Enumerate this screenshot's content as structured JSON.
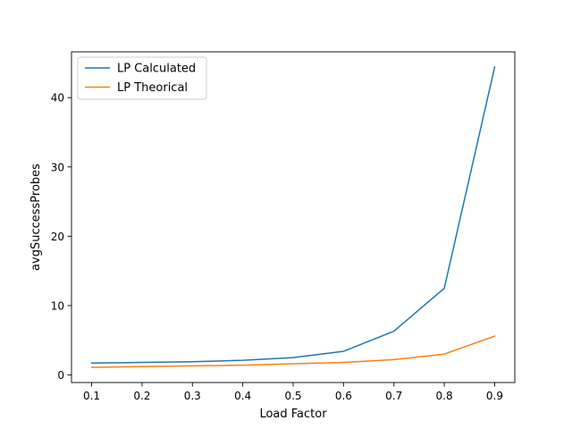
{
  "chart_data": {
    "type": "line",
    "title": "",
    "xlabel": "Load Factor",
    "ylabel": "avgSuccessProbes",
    "x": [
      0.1,
      0.2,
      0.3,
      0.4,
      0.5,
      0.6,
      0.7,
      0.8,
      0.9
    ],
    "xlim": [
      0.06,
      0.94
    ],
    "ylim": [
      -1.1,
      46.6
    ],
    "xticks": [
      0.1,
      0.2,
      0.3,
      0.4,
      0.5,
      0.6,
      0.7,
      0.8,
      0.9
    ],
    "xtick_labels": [
      "0.1",
      "0.2",
      "0.3",
      "0.4",
      "0.5",
      "0.6",
      "0.7",
      "0.8",
      "0.9"
    ],
    "yticks": [
      0,
      10,
      20,
      30,
      40
    ],
    "ytick_labels": [
      "0",
      "10",
      "20",
      "30",
      "40"
    ],
    "grid": false,
    "legend_position": "top-left",
    "series": [
      {
        "name": "LP Calculated",
        "color": "#1f77b4",
        "values": [
          1.7,
          1.8,
          1.9,
          2.1,
          2.5,
          3.4,
          6.3,
          12.5,
          44.4
        ]
      },
      {
        "name": "LP Theorical",
        "color": "#ff7f0e",
        "values": [
          1.1,
          1.2,
          1.3,
          1.4,
          1.6,
          1.8,
          2.2,
          3.0,
          5.6
        ]
      }
    ]
  }
}
